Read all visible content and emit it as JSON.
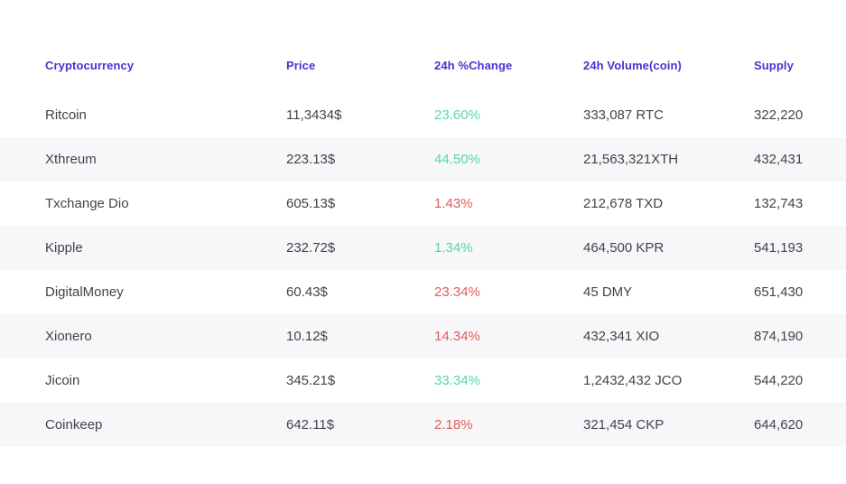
{
  "colors": {
    "header_text": "#4733d1",
    "positive_change": "#57d6a4",
    "negative_change": "#e05c5c",
    "row_stripe": "#f7f7f9",
    "body_text": "#3f444b"
  },
  "table": {
    "columns": [
      "Cryptocurrency",
      "Price",
      "24h %Change",
      "24h Volume(coin)",
      "Supply"
    ],
    "rows": [
      {
        "name": "Ritcoin",
        "price": "11,3434$",
        "change": "23.60%",
        "direction": "up",
        "volume": "333,087 RTC",
        "supply": "322,220"
      },
      {
        "name": "Xthreum",
        "price": "223.13$",
        "change": "44.50%",
        "direction": "up",
        "volume": "21,563,321XTH",
        "supply": "432,431"
      },
      {
        "name": "Txchange Dio",
        "price": "605.13$",
        "change": "1.43%",
        "direction": "down",
        "volume": "212,678 TXD",
        "supply": "132,743"
      },
      {
        "name": "Kipple",
        "price": "232.72$",
        "change": "1.34%",
        "direction": "up",
        "volume": "464,500 KPR",
        "supply": "541,193"
      },
      {
        "name": "DigitalMoney",
        "price": "60.43$",
        "change": "23.34%",
        "direction": "down",
        "volume": "45 DMY",
        "supply": "651,430"
      },
      {
        "name": "Xionero",
        "price": "10.12$",
        "change": "14.34%",
        "direction": "down",
        "volume": "432,341 XIO",
        "supply": "874,190"
      },
      {
        "name": "Jicoin",
        "price": "345.21$",
        "change": "33.34%",
        "direction": "up",
        "volume": "1,2432,432 JCO",
        "supply": "544,220"
      },
      {
        "name": "Coinkeep",
        "price": "642.11$",
        "change": "2.18%",
        "direction": "down",
        "volume": "321,454 CKP",
        "supply": "644,620"
      }
    ]
  }
}
